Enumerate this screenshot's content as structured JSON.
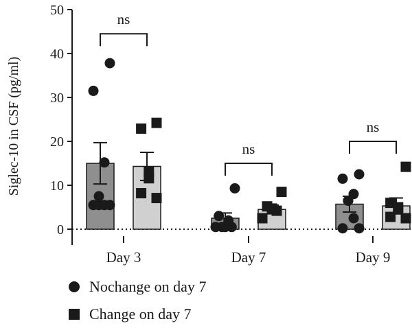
{
  "chart_data": {
    "type": "bar",
    "ylabel": "Siglec-10 in CSF (pg/ml)",
    "xlabel": "",
    "ylim": [
      0,
      50
    ],
    "yticks": [
      0,
      10,
      20,
      30,
      40,
      50
    ],
    "categories": [
      "Day 3",
      "Day 7",
      "Day 9"
    ],
    "series": [
      {
        "name": "Nochange on day 7",
        "marker": "circle",
        "color": "#8f8f8f",
        "values": [
          15.0,
          2.5,
          5.7
        ],
        "sem": [
          4.7,
          1.2,
          1.8
        ],
        "points": [
          [
            37.8,
            31.5,
            15.2,
            7.5,
            5.5,
            5.5,
            5.5,
            5.5
          ],
          [
            9.3,
            3.0,
            2.0,
            0.5,
            0.5,
            0.5,
            0.5
          ],
          [
            12.5,
            11.5,
            8.0,
            6.5,
            6.5,
            2.5,
            0.2,
            0.2
          ]
        ]
      },
      {
        "name": "Change on day 7",
        "marker": "square",
        "color": "#d0d0d0",
        "values": [
          14.3,
          4.5,
          5.3
        ],
        "sem": [
          3.2,
          1.0,
          1.8
        ],
        "points": [
          [
            24.2,
            22.9,
            13.1,
            11.6,
            8.2,
            7.1
          ],
          [
            8.5,
            5.2,
            4.7,
            4.2,
            2.5
          ],
          [
            14.2,
            6.0,
            5.0,
            4.5,
            2.8,
            2.5
          ]
        ]
      }
    ],
    "annotations": [
      {
        "category": "Day 3",
        "text": "ns",
        "bracket_y": 44.5
      },
      {
        "category": "Day 7",
        "text": "ns",
        "bracket_y": 15.0
      },
      {
        "category": "Day 9",
        "text": "ns",
        "bracket_y": 20.0
      }
    ],
    "zero_line": "dotted",
    "legend_position": "bottom-left"
  },
  "legend": {
    "items": [
      {
        "label": "Nochange on day 7",
        "marker": "circle"
      },
      {
        "label": "Change on day 7",
        "marker": "square"
      }
    ]
  }
}
